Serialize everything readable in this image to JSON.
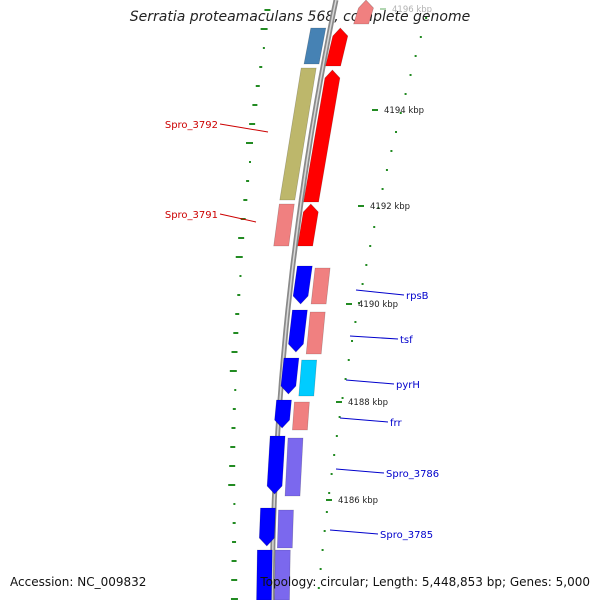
{
  "title": "Serratia proteamaculans 568, complete genome",
  "footer": {
    "accession_label": "Accession:",
    "accession": "NC_009832",
    "topology_label": "Topology:",
    "topology": "circular",
    "length_label": "Length:",
    "length": "5,448,853 bp",
    "genes_label": "Genes:",
    "genes": "5,000"
  },
  "colors": {
    "backbone": "#8a8a8a",
    "gc_ticks": "#228b22",
    "label_left": "#cc0000",
    "label_right": "#0000cc",
    "red": "#ff0000",
    "pink": "#f08080",
    "olive": "#bdb76b",
    "steelblue": "#4682b4",
    "blue": "#0000ff",
    "cyan": "#00ccff",
    "slate": "#7b68ee"
  },
  "kbp_labels": [
    "4196 kbp",
    "4194 kbp",
    "4192 kbp",
    "4190 kbp",
    "4188 kbp",
    "4186 kbp"
  ],
  "gene_labels_left": [
    "Spro_3792",
    "Spro_3791"
  ],
  "gene_labels_right": [
    "rpsB",
    "tsf",
    "pyrH",
    "frr",
    "Spro_3786",
    "Spro_3785"
  ]
}
